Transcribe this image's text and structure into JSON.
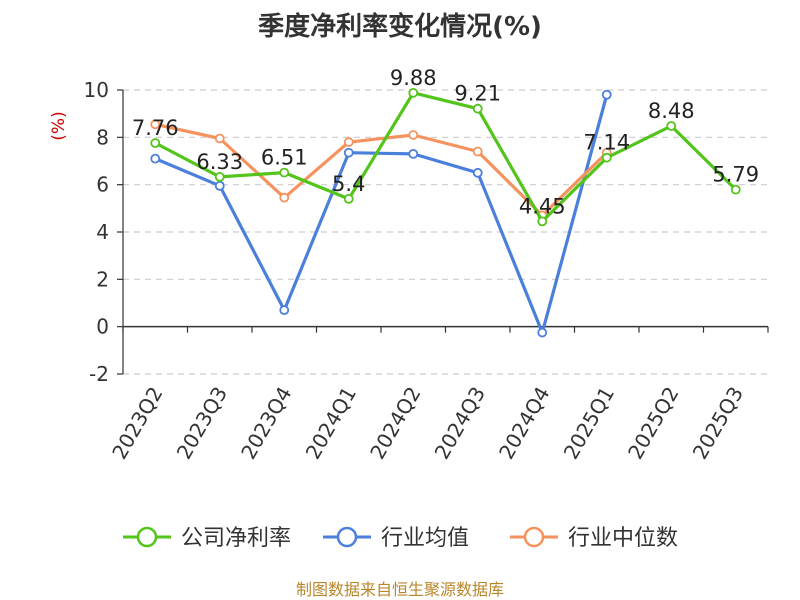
{
  "chart_data": {
    "type": "line",
    "title": "季度净利率变化情况(%)",
    "unit": "(%)",
    "categories": [
      "2023Q2",
      "2023Q3",
      "2023Q4",
      "2024Q1",
      "2024Q2",
      "2024Q3",
      "2024Q4",
      "2025Q1",
      "2025Q2",
      "2025Q3"
    ],
    "ylim": [
      -2,
      10
    ],
    "yticks": [
      -2,
      0,
      2,
      4,
      6,
      8,
      10
    ],
    "grid": true,
    "legend_position": "bottom",
    "series": [
      {
        "name": "公司净利率",
        "color": "#52c41a",
        "values": [
          7.76,
          6.33,
          6.51,
          5.4,
          9.88,
          9.21,
          4.45,
          7.14,
          8.48,
          5.79
        ],
        "labels": [
          "7.76",
          "6.33",
          "6.51",
          "5.4",
          "9.88",
          "9.21",
          "4.45",
          "7.14",
          "8.48",
          "5.79"
        ]
      },
      {
        "name": "行业均值",
        "color": "#4a7fdc",
        "values": [
          7.1,
          5.95,
          0.7,
          7.35,
          7.3,
          6.5,
          -0.25,
          9.8,
          null,
          null
        ]
      },
      {
        "name": "行业中位数",
        "color": "#f5925e",
        "values": [
          8.55,
          7.95,
          5.45,
          7.8,
          8.1,
          7.4,
          4.7,
          7.35,
          null,
          null
        ]
      }
    ],
    "source": "制图数据来自恒生聚源数据库"
  }
}
